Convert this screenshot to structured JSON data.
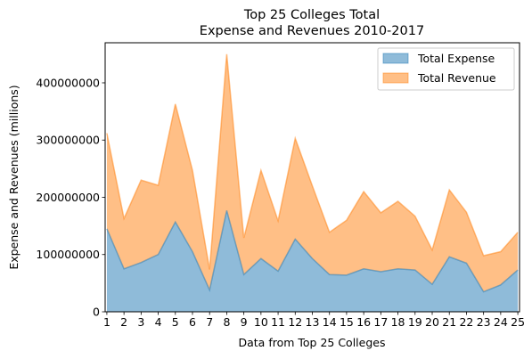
{
  "chart_data": {
    "type": "area",
    "stacked": true,
    "title_lines": [
      "Top 25 Colleges Total",
      "Expense and Revenues 2010-2017"
    ],
    "xlabel": "Data from Top 25 Colleges",
    "ylabel": "Expense and Revenues (millions)",
    "x": [
      1,
      2,
      3,
      4,
      5,
      6,
      7,
      8,
      9,
      10,
      11,
      12,
      13,
      14,
      15,
      16,
      17,
      18,
      19,
      20,
      21,
      22,
      23,
      24,
      25
    ],
    "xlim": [
      0.9,
      25.1
    ],
    "ylim": [
      0,
      470000000
    ],
    "yticks": [
      0,
      100000000,
      200000000,
      300000000,
      400000000
    ],
    "ytick_labels": [
      "0",
      "100000000",
      "200000000",
      "300000000",
      "400000000"
    ],
    "grid": false,
    "legend_position": "top-right",
    "series": [
      {
        "name": "Total Expense",
        "color": "#1f77b4",
        "values": [
          145000000,
          75000000,
          86000000,
          100000000,
          157000000,
          105000000,
          38000000,
          177000000,
          65000000,
          93000000,
          71000000,
          127000000,
          93000000,
          65000000,
          64000000,
          75000000,
          70000000,
          75000000,
          73000000,
          48000000,
          96000000,
          85000000,
          35000000,
          47000000,
          73000000
        ]
      },
      {
        "name": "Total Revenue",
        "color": "#ff7f0e",
        "values": [
          167000000,
          88000000,
          144000000,
          121000000,
          206000000,
          142000000,
          36000000,
          273000000,
          64000000,
          154000000,
          88000000,
          176000000,
          127000000,
          74000000,
          96000000,
          135000000,
          103000000,
          118000000,
          94000000,
          60000000,
          117000000,
          89000000,
          63000000,
          58000000,
          66000000
        ]
      }
    ]
  }
}
